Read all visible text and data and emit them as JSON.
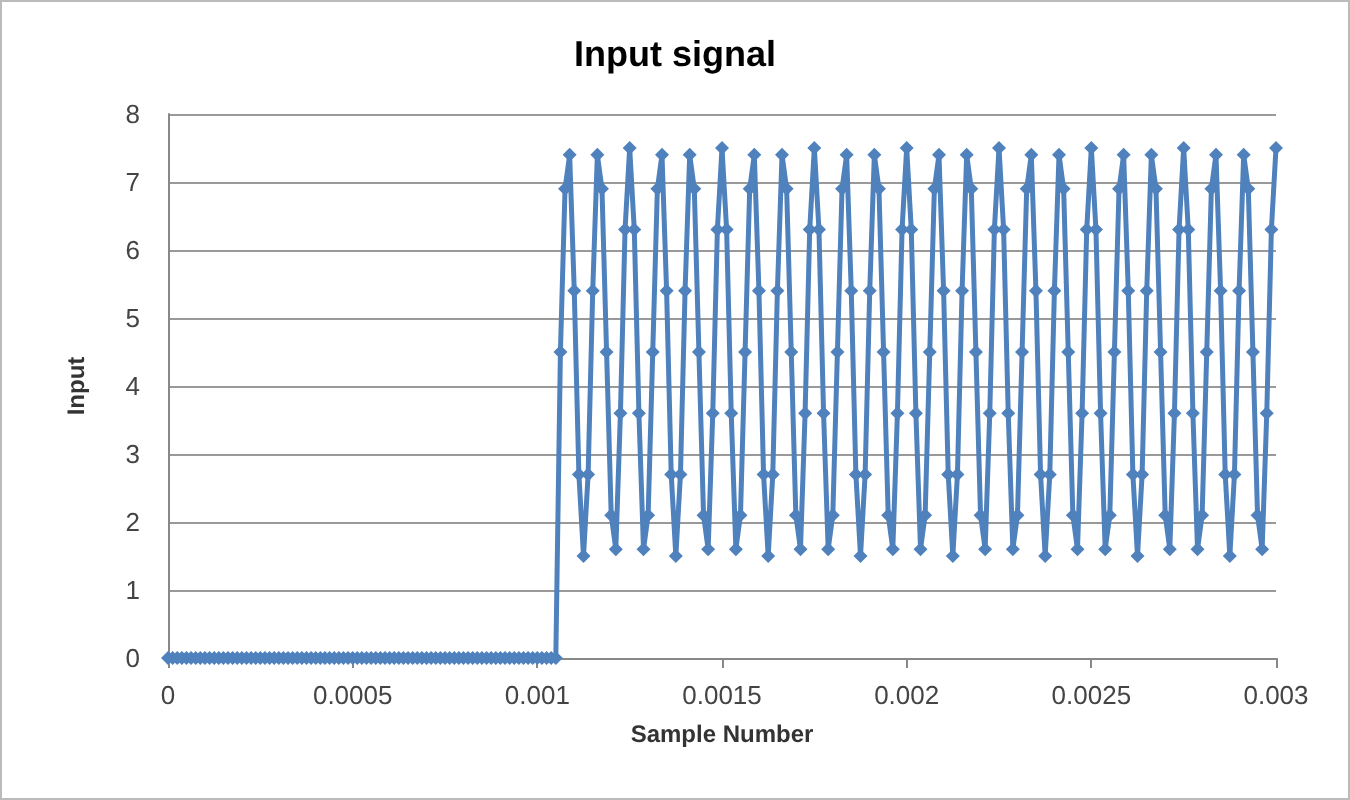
{
  "chart_data": {
    "type": "line",
    "title": "Input signal",
    "xlabel": "Sample Number",
    "ylabel": "Input",
    "xlim": [
      0,
      0.003
    ],
    "xticks": [
      0,
      0.0005,
      0.001,
      0.0015,
      0.002,
      0.0025,
      0.003
    ],
    "ylim": [
      0,
      8
    ],
    "yticks": [
      0,
      1,
      2,
      3,
      4,
      5,
      6,
      7,
      8
    ],
    "grid": "y",
    "marker": "diamond",
    "line_style": "solid",
    "x": [
      0,
      1.25e-05,
      2.5e-05,
      3.75e-05,
      5e-05,
      6.25e-05,
      7.5e-05,
      8.75e-05,
      0.0001,
      0.0001125,
      0.000125,
      0.0001375,
      0.00015,
      0.0001625,
      0.000175,
      0.0001875,
      0.0002,
      0.0002125,
      0.000225,
      0.0002375,
      0.00025,
      0.0002625,
      0.000275,
      0.0002875,
      0.0003,
      0.0003125,
      0.000325,
      0.0003375,
      0.00035,
      0.0003625,
      0.000375,
      0.0003875,
      0.0004,
      0.0004125,
      0.000425,
      0.0004375,
      0.00045,
      0.0004625,
      0.000475,
      0.0004875,
      0.0005,
      0.0005125,
      0.000525,
      0.0005375,
      0.00055,
      0.0005625,
      0.000575,
      0.0005875,
      0.0006,
      0.0006125,
      0.000625,
      0.0006375,
      0.00065,
      0.0006625,
      0.000675,
      0.0006875,
      0.0007,
      0.0007125,
      0.000725,
      0.0007375,
      0.00075,
      0.0007625,
      0.000775,
      0.0007875,
      0.0008,
      0.0008125,
      0.000825,
      0.0008375,
      0.00085,
      0.0008625,
      0.000875,
      0.0008875,
      0.0009,
      0.0009125,
      0.000925,
      0.0009375,
      0.00095,
      0.0009625,
      0.000975,
      0.0009875,
      0.001,
      0.0010125,
      0.001025,
      0.0010375,
      0.00105,
      0.0010625,
      0.001075,
      0.0010875,
      0.0011,
      0.0011125,
      0.001125,
      0.0011375,
      0.00115,
      0.0011625,
      0.001175,
      0.0011875,
      0.0012,
      0.0012125,
      0.001225,
      0.0012375,
      0.00125,
      0.0012625,
      0.001275,
      0.0012875,
      0.0013,
      0.0013125,
      0.001325,
      0.0013375,
      0.00135,
      0.0013625,
      0.001375,
      0.0013875,
      0.0014,
      0.0014125,
      0.001425,
      0.0014375,
      0.00145,
      0.0014625,
      0.001475,
      0.0014875,
      0.0015,
      0.0015125,
      0.001525,
      0.0015375,
      0.00155,
      0.0015625,
      0.001575,
      0.0015875,
      0.0016,
      0.0016125,
      0.001625,
      0.0016375,
      0.00165,
      0.0016625,
      0.001675,
      0.0016875,
      0.0017,
      0.0017125,
      0.001725,
      0.0017375,
      0.00175,
      0.0017625,
      0.001775,
      0.0017875,
      0.0018,
      0.0018125,
      0.001825,
      0.0018375,
      0.00185,
      0.0018625,
      0.001875,
      0.0018875,
      0.0019,
      0.0019125,
      0.001925,
      0.0019375,
      0.00195,
      0.0019625,
      0.001975,
      0.0019875,
      0.002,
      0.0020125,
      0.002025,
      0.0020375,
      0.00205,
      0.0020625,
      0.002075,
      0.0020875,
      0.0021,
      0.0021125,
      0.002125,
      0.0021375,
      0.00215,
      0.0021625,
      0.002175,
      0.0021875,
      0.0022,
      0.0022125,
      0.002225,
      0.0022375,
      0.00225,
      0.0022625,
      0.002275,
      0.0022875,
      0.0023,
      0.0023125,
      0.002325,
      0.0023375,
      0.00235,
      0.0023625,
      0.002375,
      0.0023875,
      0.0024,
      0.0024125,
      0.002425,
      0.0024375,
      0.00245,
      0.0024625,
      0.002475,
      0.0024875,
      0.0025,
      0.0025125,
      0.002525,
      0.0025375,
      0.00255,
      0.0025625,
      0.002575,
      0.0025875,
      0.0026,
      0.0026125,
      0.002625,
      0.0026375,
      0.00265,
      0.0026625,
      0.002675,
      0.0026875,
      0.0027,
      0.0027125,
      0.002725,
      0.0027375,
      0.00275,
      0.0027625,
      0.002775,
      0.0027875,
      0.0028,
      0.0028125,
      0.002825,
      0.0028375,
      0.00285,
      0.0028625,
      0.002875,
      0.0028875,
      0.0029,
      0.0029125,
      0.002925,
      0.0029375,
      0.00295,
      0.0029625,
      0.002975,
      0.0029875,
      0.003
    ],
    "series": [
      {
        "color": "#4f81bd",
        "values": [
          0,
          0,
          0,
          0,
          0,
          0,
          0,
          0,
          0,
          0,
          0,
          0,
          0,
          0,
          0,
          0,
          0,
          0,
          0,
          0,
          0,
          0,
          0,
          0,
          0,
          0,
          0,
          0,
          0,
          0,
          0,
          0,
          0,
          0,
          0,
          0,
          0,
          0,
          0,
          0,
          0,
          0,
          0,
          0,
          0,
          0,
          0,
          0,
          0,
          0,
          0,
          0,
          0,
          0,
          0,
          0,
          0,
          0,
          0,
          0,
          0,
          0,
          0,
          0,
          0,
          0,
          0,
          0,
          0,
          0,
          0,
          0,
          0,
          0,
          0,
          0,
          0,
          0,
          0,
          0,
          0,
          0,
          0,
          0,
          0,
          4.5,
          6.9,
          7.4,
          5.4,
          2.7,
          1.5,
          2.7,
          5.4,
          7.4,
          6.9,
          4.5,
          2.1,
          1.6,
          3.6,
          6.3,
          7.5,
          6.3,
          3.6,
          1.6,
          2.1,
          4.5,
          6.9,
          7.4,
          5.4,
          2.7,
          1.5,
          2.7,
          5.4,
          7.4,
          6.9,
          4.5,
          2.1,
          1.6,
          3.6,
          6.3,
          7.5,
          6.3,
          3.6,
          1.6,
          2.1,
          4.5,
          6.9,
          7.4,
          5.4,
          2.7,
          1.5,
          2.7,
          5.4,
          7.4,
          6.9,
          4.5,
          2.1,
          1.6,
          3.6,
          6.3,
          7.5,
          6.3,
          3.6,
          1.6,
          2.1,
          4.5,
          6.9,
          7.4,
          5.4,
          2.7,
          1.5,
          2.7,
          5.4,
          7.4,
          6.9,
          4.5,
          2.1,
          1.6,
          3.6,
          6.3,
          7.5,
          6.3,
          3.6,
          1.6,
          2.1,
          4.5,
          6.9,
          7.4,
          5.4,
          2.7,
          1.5,
          2.7,
          5.4,
          7.4,
          6.9,
          4.5,
          2.1,
          1.6,
          3.6,
          6.3,
          7.5,
          6.3,
          3.6,
          1.6,
          2.1,
          4.5,
          6.9,
          7.4,
          5.4,
          2.7,
          1.5,
          2.7,
          5.4,
          7.4,
          6.9,
          4.5,
          2.1,
          1.6,
          3.6,
          6.3,
          7.5,
          6.3,
          3.6,
          1.6,
          2.1,
          4.5,
          6.9,
          7.4,
          5.4,
          2.7,
          1.5,
          2.7,
          5.4,
          7.4,
          6.9,
          4.5,
          2.1,
          1.6,
          3.6,
          6.3,
          7.5,
          6.3,
          3.6,
          1.6,
          2.1,
          4.5,
          6.9,
          7.4,
          5.4,
          2.7,
          1.5,
          2.7,
          5.4,
          7.4,
          6.9,
          4.5,
          2.1,
          1.6,
          3.6,
          6.3,
          7.5
        ]
      }
    ]
  }
}
